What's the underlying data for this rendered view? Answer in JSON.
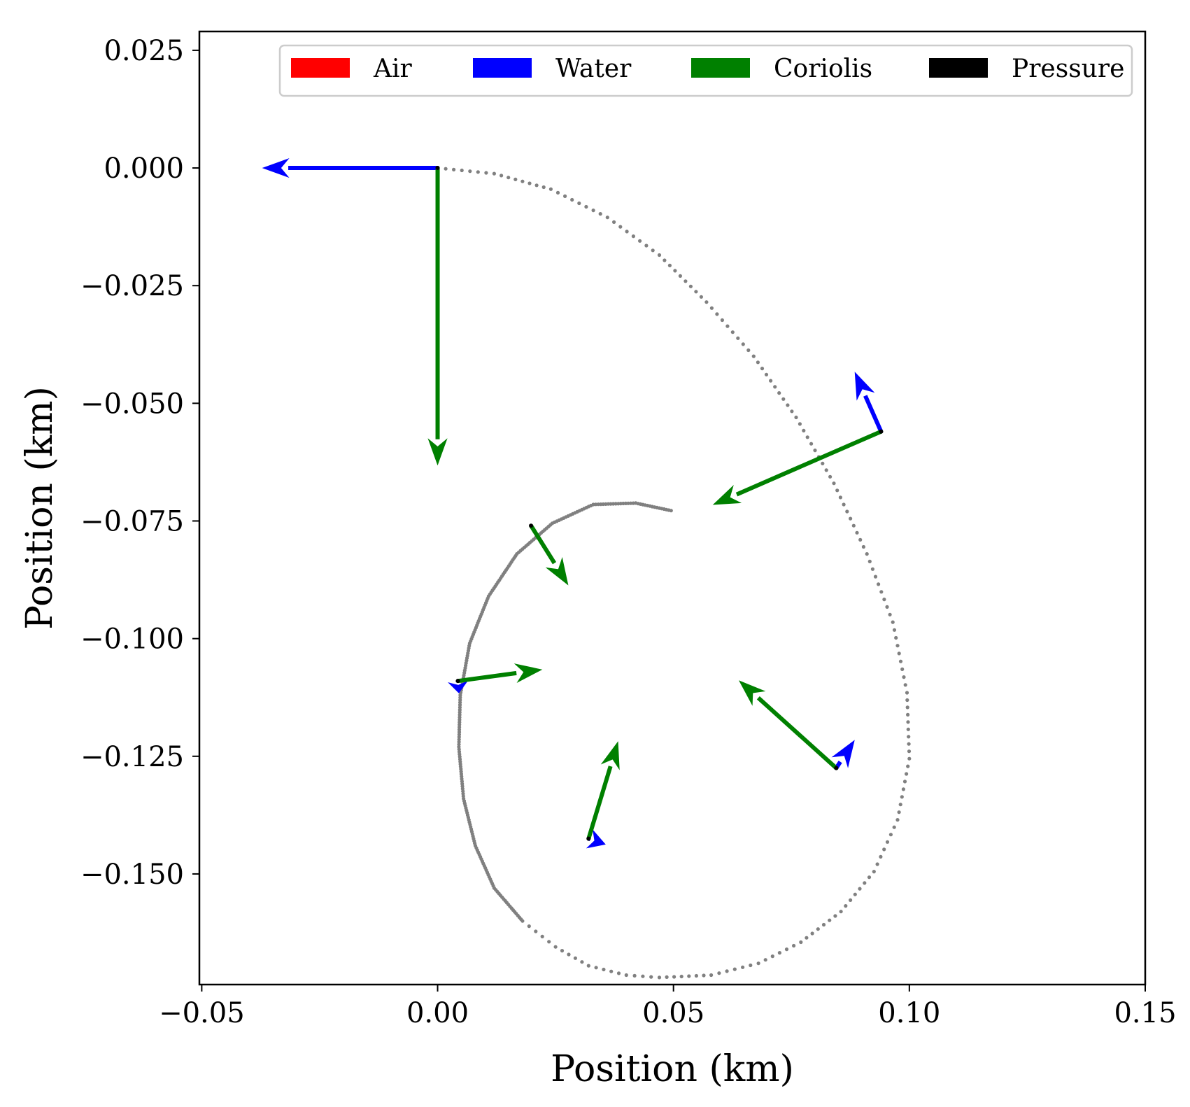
{
  "chart_data": {
    "type": "scatter",
    "title": "",
    "xlabel": "Position (km)",
    "ylabel": "Position (km)",
    "xlim": [
      -0.0505,
      0.15
    ],
    "ylim": [
      -0.1735,
      0.029
    ],
    "x_ticks": [
      -0.05,
      0.0,
      0.05,
      0.1,
      0.15
    ],
    "x_tick_labels": [
      "−0.05",
      "0.00",
      "0.05",
      "0.10",
      "0.15"
    ],
    "y_ticks": [
      0.025,
      0.0,
      -0.025,
      -0.05,
      -0.075,
      -0.1,
      -0.125,
      -0.15
    ],
    "y_tick_labels": [
      "0.025",
      "0.000",
      "−0.025",
      "−0.050",
      "−0.075",
      "−0.100",
      "−0.125",
      "−0.150"
    ],
    "grid": false,
    "legend_position": "top",
    "legend": [
      {
        "label": "Air",
        "color": "#ff0000"
      },
      {
        "label": "Water",
        "color": "#0000ff"
      },
      {
        "label": "Coriolis",
        "color": "#008000"
      },
      {
        "label": "Pressure",
        "color": "#000000"
      }
    ],
    "trajectory": {
      "color": "#808080",
      "points": [
        [
          0.0,
          0.0
        ],
        [
          0.012,
          -0.0012
        ],
        [
          0.024,
          -0.0045
        ],
        [
          0.036,
          -0.0105
        ],
        [
          0.047,
          -0.0185
        ],
        [
          0.057,
          -0.0285
        ],
        [
          0.067,
          -0.04
        ],
        [
          0.076,
          -0.053
        ],
        [
          0.084,
          -0.067
        ],
        [
          0.091,
          -0.082
        ],
        [
          0.0965,
          -0.0965
        ],
        [
          0.0995,
          -0.1115
        ],
        [
          0.1,
          -0.1255
        ],
        [
          0.0975,
          -0.1385
        ],
        [
          0.0925,
          -0.1495
        ],
        [
          0.0855,
          -0.158
        ],
        [
          0.077,
          -0.1645
        ],
        [
          0.068,
          -0.169
        ],
        [
          0.058,
          -0.1715
        ],
        [
          0.047,
          -0.172
        ],
        [
          0.04,
          -0.1715
        ],
        [
          0.032,
          -0.1695
        ],
        [
          0.025,
          -0.1655
        ],
        [
          0.018,
          -0.16
        ],
        [
          0.012,
          -0.153
        ],
        [
          0.008,
          -0.144
        ],
        [
          0.0055,
          -0.134
        ],
        [
          0.0045,
          -0.123
        ],
        [
          0.0048,
          -0.112
        ],
        [
          0.0068,
          -0.101
        ],
        [
          0.0108,
          -0.091
        ],
        [
          0.0168,
          -0.082
        ],
        [
          0.0243,
          -0.0755
        ],
        [
          0.033,
          -0.0715
        ],
        [
          0.042,
          -0.0712
        ],
        [
          0.0495,
          -0.0728
        ]
      ]
    },
    "arrows": [
      {
        "force": "Water",
        "x": 0.0,
        "y": 0.0,
        "dx": -0.037,
        "dy": 0.0
      },
      {
        "force": "Coriolis",
        "x": 0.0,
        "y": 0.0,
        "dx": 0.0,
        "dy": -0.063
      },
      {
        "force": "Water",
        "x": 0.094,
        "y": -0.056,
        "dx": -0.0055,
        "dy": 0.0125
      },
      {
        "force": "Coriolis",
        "x": 0.094,
        "y": -0.056,
        "dx": -0.0355,
        "dy": -0.0155
      },
      {
        "force": "Coriolis",
        "x": 0.0198,
        "y": -0.076,
        "dx": 0.0078,
        "dy": -0.0125
      },
      {
        "force": "Water",
        "x": 0.0043,
        "y": -0.109,
        "dx": 0.0002,
        "dy": -0.0025
      },
      {
        "force": "Coriolis",
        "x": 0.0043,
        "y": -0.109,
        "dx": 0.0177,
        "dy": 0.0024
      },
      {
        "force": "Water",
        "x": 0.032,
        "y": -0.1425,
        "dx": 0.0035,
        "dy": -0.0012
      },
      {
        "force": "Coriolis",
        "x": 0.032,
        "y": -0.1425,
        "dx": 0.0062,
        "dy": 0.0205
      },
      {
        "force": "Water",
        "x": 0.0845,
        "y": -0.1275,
        "dx": 0.0038,
        "dy": 0.0058
      },
      {
        "force": "Coriolis",
        "x": 0.0845,
        "y": -0.1275,
        "dx": -0.0205,
        "dy": 0.0185
      }
    ]
  }
}
